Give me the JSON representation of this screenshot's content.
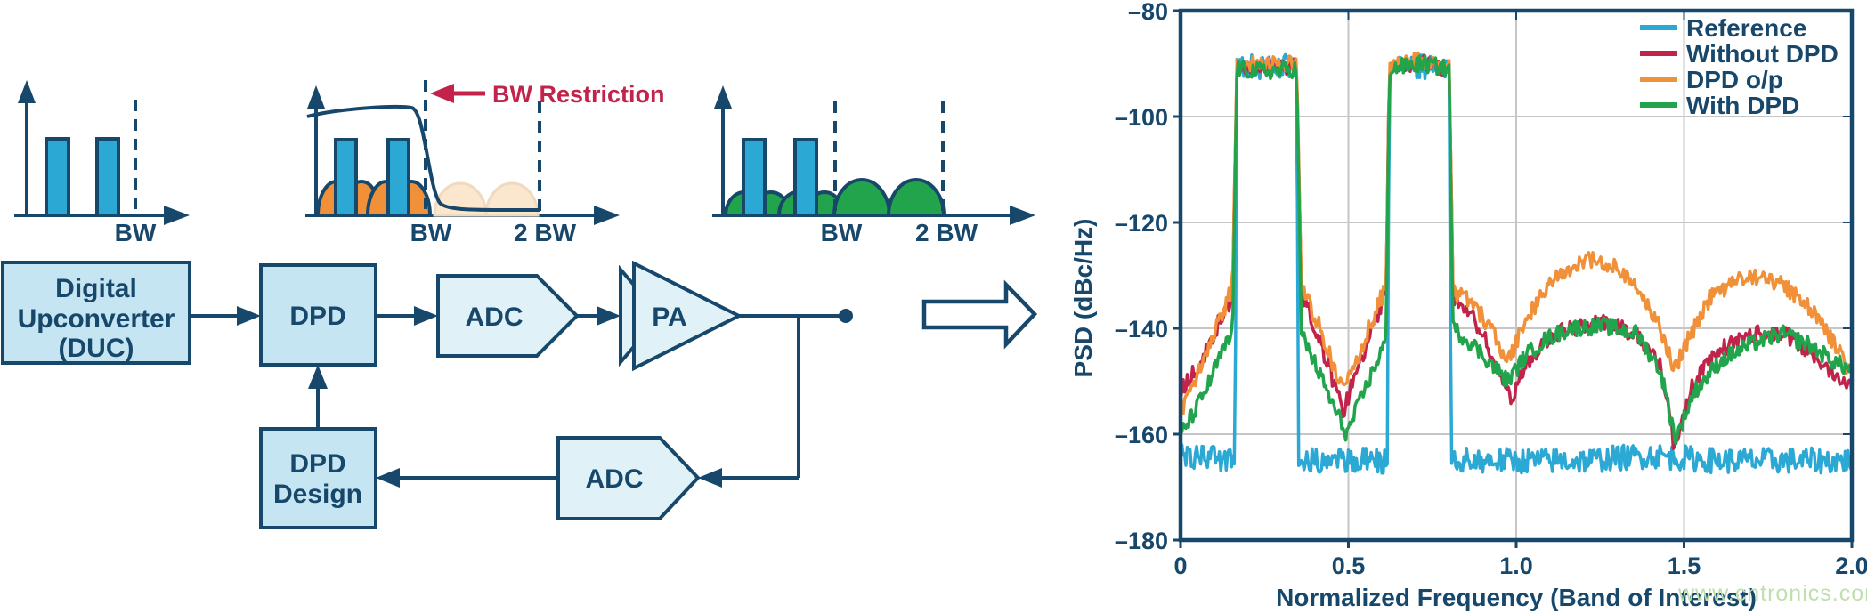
{
  "palette": {
    "navy": "#17486B",
    "cyan": "#2BA9D4",
    "orange": "#F0913A",
    "green": "#21A44B",
    "red": "#C2234A",
    "box_fill": "#C5E5F2",
    "shape_fill": "#E0F1F8",
    "faded_orange": "#FBE7CD",
    "faded_stroke": "#EFDAC0",
    "grid": "#C6C6C6",
    "watermark": "#BFDFAD"
  },
  "diagram": {
    "sketch1": {
      "bw": "BW"
    },
    "sketch2": {
      "bw": "BW",
      "two_bw": "2 BW",
      "restriction": "BW Restriction"
    },
    "sketch3": {
      "bw": "BW",
      "two_bw": "2 BW"
    },
    "blocks": {
      "duc": {
        "line1": "Digital",
        "line2": "Upconverter",
        "line3": "(DUC)"
      },
      "dpd": {
        "label": "DPD"
      },
      "adc_forward": {
        "label": "ADC"
      },
      "pa": {
        "label": "PA"
      },
      "adc_feedback": {
        "label": "ADC"
      },
      "dpd_design": {
        "line1": "DPD",
        "line2": "Design"
      }
    }
  },
  "watermark": {
    "text": "www.cntronics.com"
  },
  "chart_data": {
    "type": "line",
    "title": "",
    "xlabel": "Normalized Frequency (Band of Interest)",
    "ylabel": "PSD (dBc/Hz)",
    "xlim": [
      0,
      2
    ],
    "ylim": [
      -180,
      -80
    ],
    "grid": true,
    "legend_position": "top-right",
    "xticks": [
      {
        "value": 0,
        "label": "0"
      },
      {
        "value": 0.5,
        "label": "0.5"
      },
      {
        "value": 1.0,
        "label": "1.0"
      },
      {
        "value": 1.5,
        "label": "1.5"
      },
      {
        "value": 2.0,
        "label": "2.0"
      }
    ],
    "yticks": [
      {
        "value": -80,
        "label": "–80"
      },
      {
        "value": -100,
        "label": "–100"
      },
      {
        "value": -120,
        "label": "–120"
      },
      {
        "value": -140,
        "label": "–140"
      },
      {
        "value": -160,
        "label": "–160"
      },
      {
        "value": -180,
        "label": "–180"
      }
    ],
    "bands_of_interest": [
      [
        0.168,
        0.346
      ],
      [
        0.622,
        0.8
      ]
    ],
    "series": [
      {
        "name": "Reference",
        "color": "#2BA9D4",
        "noise_db": 2.4,
        "points": [
          [
            0,
            -164
          ],
          [
            0.162,
            -165
          ],
          [
            0.168,
            -91
          ],
          [
            0.25,
            -90.5
          ],
          [
            0.346,
            -90.5
          ],
          [
            0.352,
            -165
          ],
          [
            0.48,
            -165
          ],
          [
            0.616,
            -165
          ],
          [
            0.622,
            -90.5
          ],
          [
            0.72,
            -90.5
          ],
          [
            0.8,
            -90.5
          ],
          [
            0.806,
            -165
          ],
          [
            1.0,
            -165
          ],
          [
            1.2,
            -165
          ],
          [
            1.4,
            -164
          ],
          [
            1.6,
            -165
          ],
          [
            1.8,
            -165
          ],
          [
            2,
            -165
          ]
        ]
      },
      {
        "name": "Without DPD",
        "color": "#C2234A",
        "noise_db": 1.6,
        "points": [
          [
            0,
            -152
          ],
          [
            0.04,
            -148
          ],
          [
            0.08,
            -144
          ],
          [
            0.12,
            -138
          ],
          [
            0.155,
            -134
          ],
          [
            0.168,
            -91
          ],
          [
            0.25,
            -90.5
          ],
          [
            0.346,
            -90.5
          ],
          [
            0.36,
            -133
          ],
          [
            0.4,
            -140
          ],
          [
            0.44,
            -147
          ],
          [
            0.485,
            -156
          ],
          [
            0.52,
            -149
          ],
          [
            0.56,
            -142
          ],
          [
            0.6,
            -135
          ],
          [
            0.613,
            -133
          ],
          [
            0.622,
            -90.5
          ],
          [
            0.72,
            -90
          ],
          [
            0.8,
            -91
          ],
          [
            0.812,
            -134
          ],
          [
            0.86,
            -137
          ],
          [
            0.9,
            -141
          ],
          [
            0.95,
            -149
          ],
          [
            0.985,
            -153
          ],
          [
            1.03,
            -147
          ],
          [
            1.09,
            -142
          ],
          [
            1.16,
            -140
          ],
          [
            1.26,
            -139
          ],
          [
            1.36,
            -141
          ],
          [
            1.43,
            -147
          ],
          [
            1.47,
            -162
          ],
          [
            1.53,
            -150
          ],
          [
            1.61,
            -144
          ],
          [
            1.7,
            -141
          ],
          [
            1.8,
            -141
          ],
          [
            1.9,
            -146
          ],
          [
            2,
            -151
          ]
        ]
      },
      {
        "name": "DPD o/p",
        "color": "#F0913A",
        "noise_db": 1.6,
        "points": [
          [
            0,
            -156
          ],
          [
            0.04,
            -150
          ],
          [
            0.08,
            -144
          ],
          [
            0.12,
            -138
          ],
          [
            0.155,
            -132
          ],
          [
            0.168,
            -90.5
          ],
          [
            0.25,
            -90
          ],
          [
            0.346,
            -90
          ],
          [
            0.36,
            -132
          ],
          [
            0.41,
            -139
          ],
          [
            0.45,
            -146
          ],
          [
            0.485,
            -152
          ],
          [
            0.53,
            -145
          ],
          [
            0.58,
            -137
          ],
          [
            0.613,
            -132
          ],
          [
            0.622,
            -90
          ],
          [
            0.72,
            -89.5
          ],
          [
            0.8,
            -90.5
          ],
          [
            0.812,
            -133
          ],
          [
            0.87,
            -135
          ],
          [
            0.93,
            -141
          ],
          [
            0.975,
            -146
          ],
          [
            1.02,
            -140
          ],
          [
            1.07,
            -134
          ],
          [
            1.13,
            -130
          ],
          [
            1.22,
            -127
          ],
          [
            1.3,
            -128
          ],
          [
            1.37,
            -133
          ],
          [
            1.43,
            -140
          ],
          [
            1.47,
            -148
          ],
          [
            1.52,
            -141
          ],
          [
            1.58,
            -134
          ],
          [
            1.66,
            -131
          ],
          [
            1.74,
            -130
          ],
          [
            1.82,
            -133
          ],
          [
            1.9,
            -138
          ],
          [
            1.96,
            -144
          ],
          [
            2,
            -149
          ]
        ]
      },
      {
        "name": "With DPD",
        "color": "#21A44B",
        "noise_db": 1.6,
        "points": [
          [
            0,
            -160
          ],
          [
            0.04,
            -156
          ],
          [
            0.08,
            -151
          ],
          [
            0.12,
            -145
          ],
          [
            0.155,
            -141
          ],
          [
            0.168,
            -91
          ],
          [
            0.25,
            -91.5
          ],
          [
            0.346,
            -91
          ],
          [
            0.36,
            -141
          ],
          [
            0.41,
            -148
          ],
          [
            0.45,
            -154
          ],
          [
            0.495,
            -160
          ],
          [
            0.54,
            -153
          ],
          [
            0.58,
            -147
          ],
          [
            0.613,
            -142
          ],
          [
            0.622,
            -91
          ],
          [
            0.72,
            -90
          ],
          [
            0.8,
            -91
          ],
          [
            0.812,
            -140
          ],
          [
            0.87,
            -143
          ],
          [
            0.93,
            -147
          ],
          [
            0.975,
            -150
          ],
          [
            1.03,
            -145
          ],
          [
            1.09,
            -142
          ],
          [
            1.16,
            -140
          ],
          [
            1.26,
            -139.5
          ],
          [
            1.36,
            -141
          ],
          [
            1.43,
            -148
          ],
          [
            1.475,
            -161
          ],
          [
            1.53,
            -152
          ],
          [
            1.61,
            -146
          ],
          [
            1.7,
            -143
          ],
          [
            1.79,
            -141
          ],
          [
            1.87,
            -143
          ],
          [
            1.94,
            -146
          ],
          [
            2,
            -148
          ]
        ]
      }
    ]
  }
}
